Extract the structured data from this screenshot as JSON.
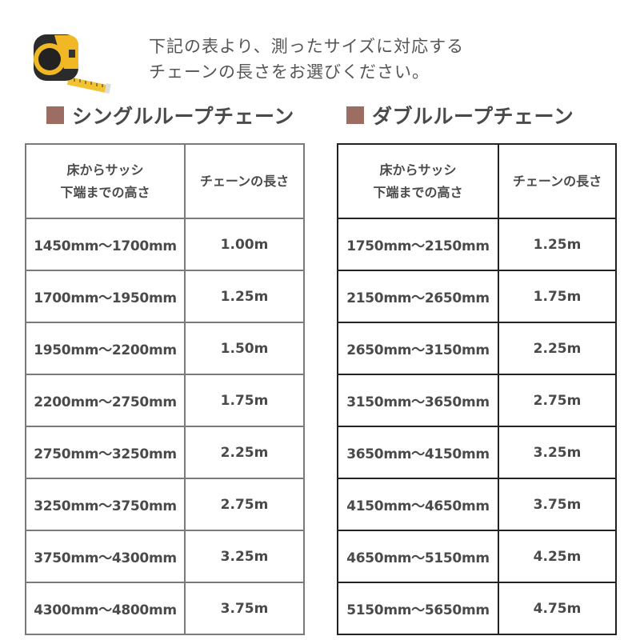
{
  "intro": {
    "line1": "下記の表より、測ったサイズに対応する",
    "line2": "チェーンの長さをお選びください。"
  },
  "accent_color": "#9b6d63",
  "icon": "tape-measure-icon",
  "single": {
    "title": "シングルループチェーン",
    "header": {
      "col1_line1": "床からサッシ",
      "col1_line2": "下端までの高さ",
      "col2": "チェーンの長さ"
    },
    "rows": [
      {
        "range": "1450mm～1700mm",
        "length": "1.00m"
      },
      {
        "range": "1700mm～1950mm",
        "length": "1.25m"
      },
      {
        "range": "1950mm～2200mm",
        "length": "1.50m"
      },
      {
        "range": "2200mm～2750mm",
        "length": "1.75m"
      },
      {
        "range": "2750mm～3250mm",
        "length": "2.25m"
      },
      {
        "range": "3250mm～3750mm",
        "length": "2.75m"
      },
      {
        "range": "3750mm～4300mm",
        "length": "3.25m"
      },
      {
        "range": "4300mm～4800mm",
        "length": "3.75m"
      }
    ]
  },
  "double": {
    "title": "ダブルループチェーン",
    "header": {
      "col1_line1": "床からサッシ",
      "col1_line2": "下端までの高さ",
      "col2": "チェーンの長さ"
    },
    "rows": [
      {
        "range": "1750mm～2150mm",
        "length": "1.25m"
      },
      {
        "range": "2150mm～2650mm",
        "length": "1.75m"
      },
      {
        "range": "2650mm～3150mm",
        "length": "2.25m"
      },
      {
        "range": "3150mm～3650mm",
        "length": "2.75m"
      },
      {
        "range": "3650mm～4150mm",
        "length": "3.25m"
      },
      {
        "range": "4150mm～4650mm",
        "length": "3.75m"
      },
      {
        "range": "4650mm～5150mm",
        "length": "4.25m"
      },
      {
        "range": "5150mm～5650mm",
        "length": "4.75m"
      }
    ]
  }
}
